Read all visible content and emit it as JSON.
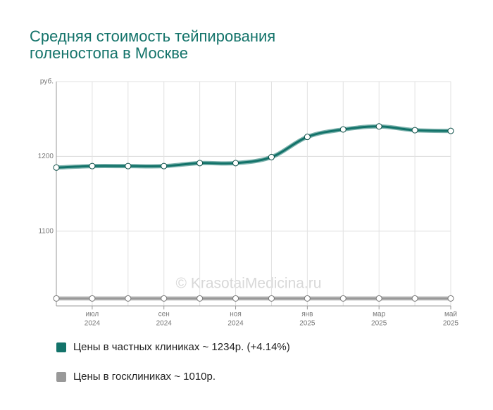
{
  "chart_data": {
    "type": "line",
    "title": [
      "Средняя стоимость тейпирования",
      "голеностопа в Москве"
    ],
    "y_unit": "руб.",
    "watermark": "© KrasotaiMedicina.ru",
    "categories": [
      null,
      [
        "июл",
        "2024"
      ],
      null,
      [
        "сен",
        "2024"
      ],
      null,
      [
        "ноя",
        "2024"
      ],
      null,
      [
        "янв",
        "2025"
      ],
      null,
      [
        "мар",
        "2025"
      ],
      null,
      [
        "май",
        "2025"
      ]
    ],
    "series": [
      {
        "name": "Цены в частных клиниках ~ 1234р. (+4.14%)",
        "color": "#13736a",
        "values": [
          1185,
          1187,
          1187,
          1187,
          1191,
          1191,
          1199,
          1226,
          1236,
          1240,
          1235,
          1234
        ]
      },
      {
        "name": "Цены в госклиниках ~ 1010р.",
        "color": "#999999",
        "values": [
          1010,
          1010,
          1010,
          1010,
          1010,
          1010,
          1010,
          1010,
          1010,
          1010,
          1010,
          1010
        ]
      }
    ],
    "ylim": [
      1000,
      1300
    ],
    "yticks": [
      1100,
      1200
    ],
    "grid": true
  }
}
